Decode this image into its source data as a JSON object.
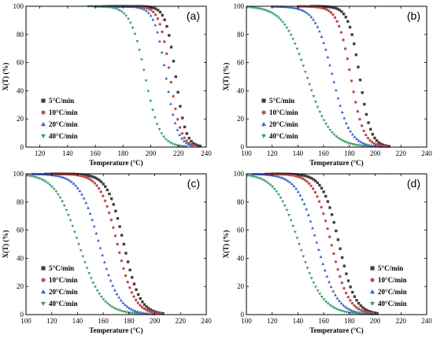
{
  "chart_data": [
    {
      "type": "scatter",
      "panel_label": "(a)",
      "xlabel": "Temperature (°C)",
      "ylabel": "X(T) (%)",
      "xlim": [
        110,
        240
      ],
      "ylim": [
        0,
        100
      ],
      "xticks": [
        "120",
        "140",
        "160",
        "180",
        "200",
        "220",
        "240"
      ],
      "yticks": [
        "0",
        "20",
        "40",
        "60",
        "80",
        "100"
      ],
      "legend_position": "center-left",
      "series": [
        {
          "name": "5°C/min",
          "marker": "square",
          "color": "#404040",
          "t50": 218,
          "k": 0.28,
          "x_start": 170,
          "x_end": 236,
          "step": 1.6
        },
        {
          "name": "10°C/min",
          "marker": "circle",
          "color": "#c0504d",
          "t50": 214,
          "k": 0.26,
          "x_start": 165,
          "x_end": 232,
          "step": 1.6
        },
        {
          "name": "20°C/min",
          "marker": "triangle-up",
          "color": "#3a5fcd",
          "t50": 211,
          "k": 0.24,
          "x_start": 160,
          "x_end": 230,
          "step": 1.6
        },
        {
          "name": "40°C/min",
          "marker": "triangle-down",
          "color": "#3c9a6e",
          "t50": 196,
          "k": 0.19,
          "x_start": 155,
          "x_end": 226,
          "step": 1.6
        }
      ]
    },
    {
      "type": "scatter",
      "panel_label": "(b)",
      "xlabel": "Temperature (°C)",
      "ylabel": "X(T) (%)",
      "xlim": [
        100,
        240
      ],
      "ylim": [
        0,
        100
      ],
      "xticks": [
        "100",
        "120",
        "140",
        "160",
        "180",
        "200",
        "220",
        "240"
      ],
      "yticks": [
        "0",
        "20",
        "40",
        "60",
        "80",
        "100"
      ],
      "legend_position": "center-left",
      "series": [
        {
          "name": "5°C/min",
          "marker": "square",
          "color": "#404040",
          "t50": 188,
          "k": 0.23,
          "x_start": 150,
          "x_end": 212,
          "step": 1.6
        },
        {
          "name": "10°C/min",
          "marker": "circle",
          "color": "#c0504d",
          "t50": 181,
          "k": 0.2,
          "x_start": 140,
          "x_end": 210,
          "step": 1.6
        },
        {
          "name": "20°C/min",
          "marker": "triangle-up",
          "color": "#3a5fcd",
          "t50": 167,
          "k": 0.15,
          "x_start": 120,
          "x_end": 206,
          "step": 1.6
        },
        {
          "name": "40°C/min",
          "marker": "triangle-down",
          "color": "#3c9a6e",
          "t50": 147,
          "k": 0.11,
          "x_start": 101,
          "x_end": 198,
          "step": 1.6
        }
      ]
    },
    {
      "type": "scatter",
      "panel_label": "(c)",
      "xlabel": "Temperature (°C)",
      "ylabel": "X(T) (%)",
      "xlim": [
        100,
        240
      ],
      "ylim": [
        0,
        100
      ],
      "xticks": [
        "100",
        "120",
        "140",
        "160",
        "180",
        "200",
        "220",
        "240"
      ],
      "yticks": [
        "0",
        "20",
        "40",
        "60",
        "80",
        "100"
      ],
      "legend_position": "bottom-left",
      "series": [
        {
          "name": "5°C/min",
          "marker": "square",
          "color": "#404040",
          "t50": 176,
          "k": 0.16,
          "x_start": 120,
          "x_end": 207,
          "step": 1.6
        },
        {
          "name": "10°C/min",
          "marker": "circle",
          "color": "#c0504d",
          "t50": 171,
          "k": 0.15,
          "x_start": 115,
          "x_end": 205,
          "step": 1.6
        },
        {
          "name": "20°C/min",
          "marker": "triangle-up",
          "color": "#3a5fcd",
          "t50": 157,
          "k": 0.13,
          "x_start": 105,
          "x_end": 200,
          "step": 1.6
        },
        {
          "name": "40°C/min",
          "marker": "triangle-down",
          "color": "#3c9a6e",
          "t50": 141,
          "k": 0.11,
          "x_start": 101,
          "x_end": 190,
          "step": 1.6
        }
      ]
    },
    {
      "type": "scatter",
      "panel_label": "(d)",
      "xlabel": "Temperature (°C)",
      "ylabel": "X(T) (%)",
      "xlim": [
        100,
        240
      ],
      "ylim": [
        0,
        100
      ],
      "xticks": [
        "100",
        "120",
        "140",
        "160",
        "180",
        "200",
        "220",
        "240"
      ],
      "yticks": [
        "0",
        "20",
        "40",
        "60",
        "80",
        "100"
      ],
      "legend_position": "bottom-right",
      "series": [
        {
          "name": "5°C/min",
          "marker": "square",
          "color": "#404040",
          "t50": 172,
          "k": 0.16,
          "x_start": 120,
          "x_end": 203,
          "step": 1.6
        },
        {
          "name": "10°C/min",
          "marker": "circle",
          "color": "#c0504d",
          "t50": 166,
          "k": 0.15,
          "x_start": 115,
          "x_end": 200,
          "step": 1.6
        },
        {
          "name": "20°C/min",
          "marker": "triangle-up",
          "color": "#3a5fcd",
          "t50": 155,
          "k": 0.13,
          "x_start": 105,
          "x_end": 198,
          "step": 1.6
        },
        {
          "name": "40°C/min",
          "marker": "triangle-down",
          "color": "#3c9a6e",
          "t50": 141,
          "k": 0.11,
          "x_start": 101,
          "x_end": 190,
          "step": 1.6
        }
      ]
    }
  ]
}
